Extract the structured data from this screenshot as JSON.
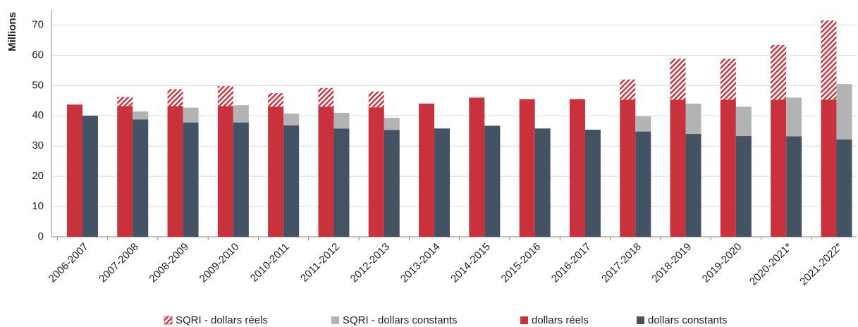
{
  "chart_data": {
    "type": "bar",
    "stacked": true,
    "ylabel": "Millions",
    "categories": [
      "2006-2007",
      "2007-2008",
      "2008-2009",
      "2009-2010",
      "2010-2011",
      "2011-2012",
      "2012-2013",
      "2013-2014",
      "2014-2015",
      "2015-2016",
      "2016-2017",
      "2017-2018",
      "2018-2019",
      "2019-2020",
      "2020-2021*",
      "2021-2022*"
    ],
    "series": [
      {
        "name": "SQRI - dollars réels",
        "color": "#c8323c",
        "hatch": true,
        "stack": 0,
        "values": [
          0,
          3,
          5.6,
          6.6,
          4.5,
          6.2,
          5.2,
          0,
          0,
          0,
          0,
          6.7,
          13.5,
          13.5,
          18.1,
          26.2
        ]
      },
      {
        "name": "SQRI - dollars constants",
        "color": "#b3b3b3",
        "hatch": false,
        "stack": 1,
        "values": [
          0,
          2.6,
          4.9,
          5.7,
          3.9,
          5.2,
          4,
          0,
          0,
          0,
          0,
          5,
          10,
          9.7,
          12.8,
          18.3
        ]
      },
      {
        "name": "dollars réels",
        "color": "#c8323c",
        "hatch": false,
        "stack": 0,
        "values": [
          43.7,
          43.2,
          43.2,
          43.2,
          43,
          43,
          42.8,
          44,
          46,
          45.5,
          45.5,
          45.3,
          45.3,
          45.3,
          45.3,
          45.3
        ]
      },
      {
        "name": "dollars constants",
        "color": "#435363",
        "hatch": false,
        "stack": 1,
        "values": [
          40,
          38.8,
          37.8,
          37.8,
          36.8,
          35.8,
          35.3,
          35.8,
          36.7,
          35.8,
          35.4,
          34.8,
          34,
          33.3,
          33.2,
          32.2
        ]
      }
    ],
    "ylim": [
      0,
      75
    ],
    "yticks": [
      0,
      10,
      20,
      30,
      40,
      50,
      60,
      70
    ],
    "grid": true,
    "legend": "bottom"
  }
}
